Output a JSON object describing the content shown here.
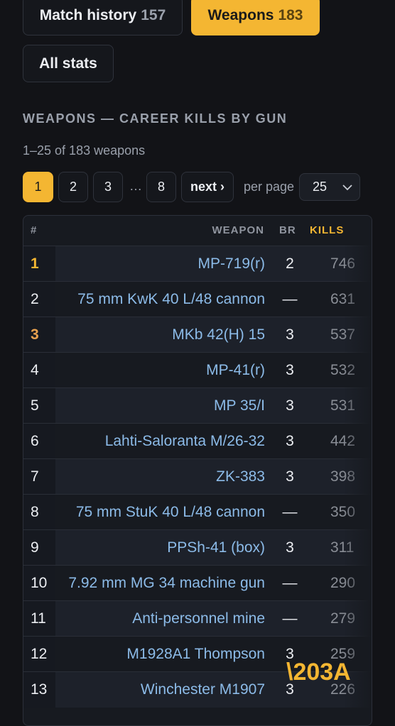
{
  "tabs": [
    {
      "label": "Match history",
      "count": 157
    },
    {
      "label": "Weapons",
      "count": 183
    },
    {
      "label": "All stats"
    }
  ],
  "section_title": "WEAPONS — CAREER KILLS BY GUN",
  "summary": "1–25 of 183 weapons",
  "pagination": {
    "pages": [
      "1",
      "2",
      "3",
      "…",
      "8"
    ],
    "next": "next ›",
    "per_page_label": "per page",
    "per_page": "25"
  },
  "table": {
    "headers": [
      "#",
      "WEAPON",
      "BR",
      "KILLS"
    ],
    "rows": [
      [
        1,
        "MP-719(r)",
        "2",
        746
      ],
      [
        2,
        "75 mm KwK 40 L/48 cannon",
        "—",
        631
      ],
      [
        3,
        "MKb 42(H) 15",
        "3",
        537
      ],
      [
        4,
        "MP-41(r)",
        "3",
        532
      ],
      [
        5,
        "MP 35/I",
        "3",
        531
      ],
      [
        6,
        "Lahti-Saloranta M/26-32",
        "3",
        442
      ],
      [
        7,
        "ZK-383",
        "3",
        398
      ],
      [
        8,
        "75 mm StuK 40 L/48 cannon",
        "—",
        350
      ],
      [
        9,
        "PPSh-41 (box)",
        "3",
        311
      ],
      [
        10,
        "7.92 mm MG 34 machine gun",
        "—",
        290
      ],
      [
        11,
        "Anti-personnel mine",
        "—",
        279
      ],
      [
        12,
        "M1928A1 Thompson",
        "3",
        259
      ],
      [
        13,
        "Winchester M1907",
        "3",
        226
      ]
    ]
  },
  "watermark": "\\203A"
}
